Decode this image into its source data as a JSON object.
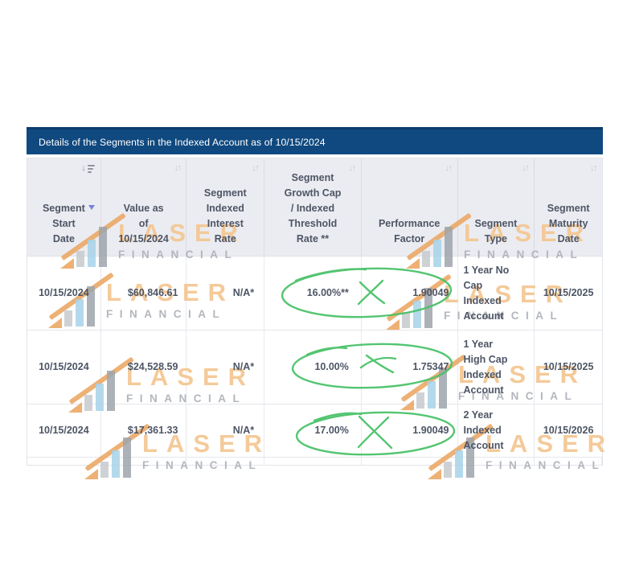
{
  "title_bar": {
    "text": "Details of the Segments in the Indexed Account as of 10/15/2024"
  },
  "table": {
    "columns": [
      {
        "key": "segment_start_date",
        "label": "Segment\nStart\nDate",
        "sort": "desc"
      },
      {
        "key": "value_as_of",
        "label": "Value as\nof\n10/15/2024",
        "sort": "unsorted"
      },
      {
        "key": "segment_indexed_interest_rate",
        "label": "Segment\nIndexed\nInterest\nRate",
        "sort": "unsorted"
      },
      {
        "key": "segment_growth_cap_threshold",
        "label": "Segment\nGrowth Cap\n/ Indexed\nThreshold\nRate **",
        "sort": "unsorted"
      },
      {
        "key": "performance_factor",
        "label": "Performance\nFactor",
        "sort": "unsorted"
      },
      {
        "key": "segment_type",
        "label": "Segment\nType",
        "sort": "unsorted"
      },
      {
        "key": "segment_maturity_date",
        "label": "Segment\nMaturity\nDate",
        "sort": "unsorted"
      }
    ],
    "rows": [
      {
        "cells": [
          "10/15/2024",
          "$60,846.61",
          "N/A*",
          "16.00%**",
          "1.90049",
          "1 Year No\nCap\nIndexed\nAccount",
          "10/15/2025"
        ]
      },
      {
        "cells": [
          "10/15/2024",
          "$24,528.59",
          "N/A*",
          "10.00%",
          "1.75347",
          "1 Year\nHigh Cap\nIndexed\nAccount",
          "10/15/2025"
        ]
      },
      {
        "cells": [
          "10/15/2024",
          "$17,361.33",
          "N/A*",
          "17.00%",
          "1.90049",
          "2 Year\nIndexed\nAccount",
          "10/15/2026"
        ]
      }
    ]
  },
  "watermark": {
    "brand": "LASER",
    "subtext": "FINANCIAL"
  },
  "annotations": {
    "ink_color": "#4bc26a",
    "items": [
      {
        "row": 1,
        "type": "hand-drawn-circle-with-x",
        "around": [
          "16.00%**",
          "1.90049"
        ]
      },
      {
        "row": 2,
        "type": "hand-drawn-circle-with-x",
        "around": [
          "10.00%",
          "1.75347"
        ]
      },
      {
        "row": 3,
        "type": "hand-drawn-circle-with-x",
        "around": [
          "17.00%",
          "1.90049"
        ]
      }
    ]
  },
  "colors": {
    "title_bar_bg": "#10497f",
    "title_bar_top_edge": "#0c3c6c",
    "header_bg": "#ebecf1",
    "table_text": "#4d5565",
    "annotation_green": "#4bc26a",
    "watermark_tan": "#f3c690",
    "watermark_gray": "#afb3b9"
  }
}
